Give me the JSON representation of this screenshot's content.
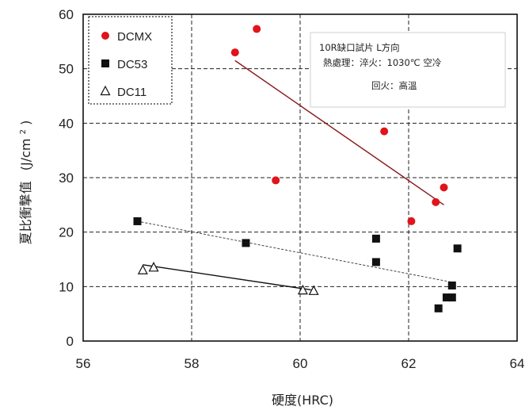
{
  "chart_data": {
    "type": "scatter",
    "xlabel": "硬度(HRC)",
    "ylabel": "夏比衝撃值",
    "ylabel_unit_prefix": "(J/cm",
    "ylabel_unit_sup": "2",
    "ylabel_unit_suffix": ")",
    "xlim": [
      56,
      64
    ],
    "ylim": [
      0,
      60
    ],
    "x_ticks": [
      "56",
      "58",
      "60",
      "62",
      "64"
    ],
    "y_ticks": [
      "0",
      "10",
      "20",
      "30",
      "40",
      "50",
      "60"
    ],
    "grid": true,
    "legend_position": "top-left",
    "annotation": {
      "line1": "10R缺口試片 L方向",
      "line2": "熱處理：淬火：1030℃ 空冷",
      "line3": "回火：高溫"
    },
    "series": [
      {
        "name": "DCMX",
        "marker": "circle",
        "color": "#e0141c",
        "points": [
          [
            58.8,
            53
          ],
          [
            59.2,
            57.3
          ],
          [
            59.55,
            29.5
          ],
          [
            61.55,
            38.5
          ],
          [
            62.05,
            22
          ],
          [
            62.5,
            25.5
          ],
          [
            62.65,
            28.2
          ]
        ],
        "trend": [
          [
            58.8,
            51.5
          ],
          [
            62.65,
            25
          ]
        ],
        "trend_color": "#8a1a1a",
        "trend_style": "solid"
      },
      {
        "name": "DC53",
        "marker": "square",
        "color": "#111111",
        "points": [
          [
            57.0,
            22
          ],
          [
            59.0,
            18
          ],
          [
            61.4,
            18.8
          ],
          [
            61.4,
            14.5
          ],
          [
            62.55,
            6
          ],
          [
            62.7,
            8
          ],
          [
            62.8,
            8
          ],
          [
            62.8,
            10.2
          ],
          [
            62.9,
            17
          ]
        ],
        "trend": [
          [
            57.0,
            22
          ],
          [
            62.8,
            10.8
          ]
        ],
        "trend_color": "#444444",
        "trend_style": "dashed"
      },
      {
        "name": "DC11",
        "marker": "triangle",
        "color": "#111111",
        "points": [
          [
            57.1,
            13
          ],
          [
            57.3,
            13.5
          ],
          [
            60.05,
            9.3
          ],
          [
            60.25,
            9.2
          ]
        ],
        "trend": [
          [
            57.1,
            14
          ],
          [
            60.2,
            9.4
          ]
        ],
        "trend_color": "#111111",
        "trend_style": "solid"
      }
    ]
  }
}
